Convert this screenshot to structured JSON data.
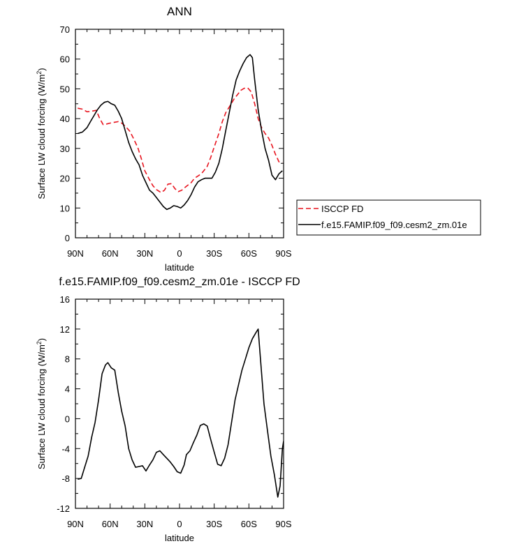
{
  "chart_data": [
    {
      "type": "line",
      "title": "ANN",
      "xlabel": "latitude",
      "ylabel_main": "Surface LW cloud forcing (W/m",
      "ylabel_sup": "2",
      "ylabel_end": ")",
      "xlim": [
        90,
        -90
      ],
      "ylim": [
        0,
        70
      ],
      "xticks": [
        {
          "value": 90,
          "label": "90N"
        },
        {
          "value": 60,
          "label": "60N"
        },
        {
          "value": 30,
          "label": "30N"
        },
        {
          "value": 0,
          "label": "0"
        },
        {
          "value": -30,
          "label": "30S"
        },
        {
          "value": -60,
          "label": "60S"
        },
        {
          "value": -90,
          "label": "90S"
        }
      ],
      "yticks": [
        {
          "value": 0,
          "label": "0"
        },
        {
          "value": 10,
          "label": "10"
        },
        {
          "value": 20,
          "label": "20"
        },
        {
          "value": 30,
          "label": "30"
        },
        {
          "value": 40,
          "label": "40"
        },
        {
          "value": 50,
          "label": "50"
        },
        {
          "value": 60,
          "label": "60"
        },
        {
          "value": 70,
          "label": "70"
        }
      ],
      "legend_position": "right",
      "series": [
        {
          "name": "ISCCP FD",
          "color": "#e8141e",
          "dash": true,
          "points": [
            [
              88,
              43.5
            ],
            [
              84,
              43.2
            ],
            [
              80,
              42.3
            ],
            [
              76,
              42.5
            ],
            [
              72,
              42.8
            ],
            [
              69,
              40
            ],
            [
              66,
              38
            ],
            [
              63,
              38.2
            ],
            [
              60,
              38.5
            ],
            [
              56,
              38.8
            ],
            [
              53,
              39
            ],
            [
              50,
              38.5
            ],
            [
              47,
              37.5
            ],
            [
              43,
              35.8
            ],
            [
              40,
              33.5
            ],
            [
              36,
              30.2
            ],
            [
              33,
              26.5
            ],
            [
              30,
              22.5
            ],
            [
              26,
              19.5
            ],
            [
              23,
              17.5
            ],
            [
              20,
              16.2
            ],
            [
              16,
              15.2
            ],
            [
              13,
              16
            ],
            [
              10,
              18
            ],
            [
              7,
              18.2
            ],
            [
              4,
              16.5
            ],
            [
              1,
              15.5
            ],
            [
              -2,
              16
            ],
            [
              -6,
              17.3
            ],
            [
              -10,
              18.5
            ],
            [
              -13,
              20
            ],
            [
              -17,
              21
            ],
            [
              -20,
              22
            ],
            [
              -24,
              24
            ],
            [
              -27,
              27
            ],
            [
              -30,
              30.5
            ],
            [
              -34,
              35
            ],
            [
              -37,
              39
            ],
            [
              -40,
              42
            ],
            [
              -44,
              44.5
            ],
            [
              -47,
              46.5
            ],
            [
              -50,
              48
            ],
            [
              -53,
              49.5
            ],
            [
              -56,
              50.2
            ],
            [
              -59,
              50.3
            ],
            [
              -62,
              49
            ],
            [
              -65,
              45
            ],
            [
              -68,
              40
            ],
            [
              -71,
              37
            ],
            [
              -74,
              35
            ],
            [
              -77,
              33.5
            ],
            [
              -80,
              31
            ],
            [
              -83,
              28
            ],
            [
              -86,
              25.5
            ],
            [
              -89,
              25.3
            ]
          ]
        },
        {
          "name": "f.e15.FAMIP.f09_f09.cesm2_zm.01e",
          "color": "#000000",
          "dash": false,
          "points": [
            [
              88,
              35
            ],
            [
              84,
              35.5
            ],
            [
              80,
              37
            ],
            [
              77,
              39
            ],
            [
              74,
              41
            ],
            [
              71,
              43
            ],
            [
              68,
              44.5
            ],
            [
              65,
              45.5
            ],
            [
              62,
              45.8
            ],
            [
              59,
              45
            ],
            [
              56,
              44.5
            ],
            [
              53,
              42.5
            ],
            [
              50,
              40
            ],
            [
              47,
              36
            ],
            [
              44,
              32
            ],
            [
              41,
              29
            ],
            [
              38,
              26.5
            ],
            [
              35,
              24.5
            ],
            [
              32,
              21
            ],
            [
              29,
              18.5
            ],
            [
              26,
              16
            ],
            [
              23,
              15
            ],
            [
              20,
              13.5
            ],
            [
              17,
              12
            ],
            [
              14,
              10.5
            ],
            [
              11,
              9.5
            ],
            [
              8,
              10
            ],
            [
              5,
              10.8
            ],
            [
              2,
              10.5
            ],
            [
              -1,
              10
            ],
            [
              -4,
              11
            ],
            [
              -7,
              12.5
            ],
            [
              -10,
              14.5
            ],
            [
              -13,
              17
            ],
            [
              -16,
              18.8
            ],
            [
              -19,
              19.5
            ],
            [
              -22,
              20
            ],
            [
              -25,
              20
            ],
            [
              -28,
              20
            ],
            [
              -31,
              22
            ],
            [
              -34,
              25
            ],
            [
              -37,
              30
            ],
            [
              -40,
              36
            ],
            [
              -43,
              42
            ],
            [
              -46,
              48
            ],
            [
              -49,
              53
            ],
            [
              -52,
              56
            ],
            [
              -55,
              58.5
            ],
            [
              -58,
              60.5
            ],
            [
              -61,
              61.5
            ],
            [
              -63,
              60.5
            ],
            [
              -65,
              53
            ],
            [
              -68,
              43
            ],
            [
              -71,
              36
            ],
            [
              -74,
              30
            ],
            [
              -77,
              26
            ],
            [
              -80,
              21
            ],
            [
              -83,
              19.5
            ],
            [
              -86,
              21.5
            ],
            [
              -89,
              22.5
            ]
          ]
        }
      ]
    },
    {
      "type": "line",
      "title": "f.e15.FAMIP.f09_f09.cesm2_zm.01e - ISCCP FD",
      "xlabel": "latitude",
      "ylabel_main": "Surface LW cloud forcing (W/m",
      "ylabel_sup": "2",
      "ylabel_end": ")",
      "xlim": [
        90,
        -90
      ],
      "ylim": [
        -12,
        16
      ],
      "xticks": [
        {
          "value": 90,
          "label": "90N"
        },
        {
          "value": 60,
          "label": "60N"
        },
        {
          "value": 30,
          "label": "30N"
        },
        {
          "value": 0,
          "label": "0"
        },
        {
          "value": -30,
          "label": "30S"
        },
        {
          "value": -60,
          "label": "60S"
        },
        {
          "value": -90,
          "label": "90S"
        }
      ],
      "yticks": [
        {
          "value": -12,
          "label": "-12"
        },
        {
          "value": -8,
          "label": "-8"
        },
        {
          "value": -4,
          "label": "-4"
        },
        {
          "value": 0,
          "label": "0"
        },
        {
          "value": 4,
          "label": "4"
        },
        {
          "value": 8,
          "label": "8"
        },
        {
          "value": 12,
          "label": "12"
        },
        {
          "value": 16,
          "label": "16"
        }
      ],
      "series": [
        {
          "color": "#000000",
          "dash": false,
          "points": [
            [
              88,
              -8.1
            ],
            [
              85,
              -8
            ],
            [
              82,
              -6.5
            ],
            [
              79,
              -5
            ],
            [
              76,
              -2.5
            ],
            [
              73,
              -0.5
            ],
            [
              70,
              2.5
            ],
            [
              67,
              6
            ],
            [
              64,
              7.2
            ],
            [
              62,
              7.5
            ],
            [
              59,
              6.8
            ],
            [
              56,
              6.5
            ],
            [
              53,
              3.5
            ],
            [
              50,
              1
            ],
            [
              47,
              -1
            ],
            [
              44,
              -4
            ],
            [
              41,
              -5.5
            ],
            [
              38,
              -6.5
            ],
            [
              35,
              -6.4
            ],
            [
              32,
              -6.3
            ],
            [
              29,
              -7
            ],
            [
              26,
              -6.2
            ],
            [
              23,
              -5.5
            ],
            [
              20,
              -4.5
            ],
            [
              17,
              -4.3
            ],
            [
              14,
              -4.8
            ],
            [
              11,
              -5.3
            ],
            [
              8,
              -5.8
            ],
            [
              5,
              -6.4
            ],
            [
              2,
              -7.1
            ],
            [
              -1,
              -7.3
            ],
            [
              -4,
              -6.2
            ],
            [
              -6,
              -4.8
            ],
            [
              -9,
              -4.3
            ],
            [
              -12,
              -3.2
            ],
            [
              -15,
              -2.2
            ],
            [
              -18,
              -0.9
            ],
            [
              -21,
              -0.7
            ],
            [
              -24,
              -1
            ],
            [
              -27,
              -2.8
            ],
            [
              -30,
              -4.5
            ],
            [
              -33,
              -6.1
            ],
            [
              -36,
              -6.3
            ],
            [
              -39,
              -5.3
            ],
            [
              -42,
              -3.5
            ],
            [
              -45,
              -0.5
            ],
            [
              -48,
              2.5
            ],
            [
              -51,
              4.5
            ],
            [
              -54,
              6.5
            ],
            [
              -57,
              8
            ],
            [
              -60,
              9.5
            ],
            [
              -63,
              10.7
            ],
            [
              -66,
              11.5
            ],
            [
              -68,
              12
            ],
            [
              -70,
              8
            ],
            [
              -73,
              2
            ],
            [
              -76,
              -1.5
            ],
            [
              -79,
              -5
            ],
            [
              -82,
              -7.5
            ],
            [
              -85,
              -10.5
            ],
            [
              -87,
              -9
            ],
            [
              -89,
              -4
            ],
            [
              -90,
              -3
            ]
          ]
        }
      ]
    }
  ]
}
